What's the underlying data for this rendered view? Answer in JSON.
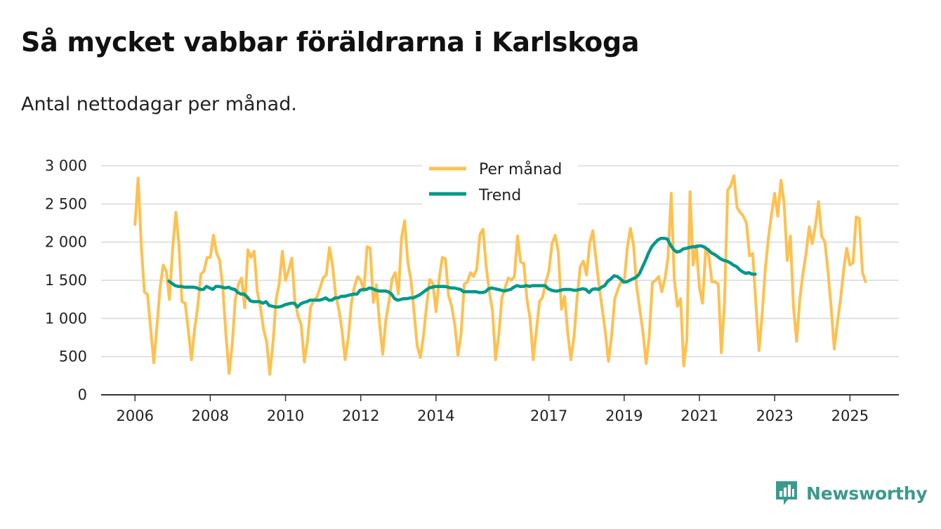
{
  "header": {
    "title": "Så mycket vabbar föräldrarna i Karlskoga",
    "subtitle": "Antal nettodagar per månad."
  },
  "brand": {
    "name": "Newsworthy",
    "color": "#3b9a8c"
  },
  "colors": {
    "per_month": "#ffc04f",
    "trend": "#00998a",
    "grid": "#d9d9d9",
    "axis": "#333333"
  },
  "chart_data": {
    "type": "line",
    "title": "Så mycket vabbar föräldrarna i Karlskoga",
    "subtitle": "Antal nettodagar per månad.",
    "xlabel": "",
    "ylabel": "",
    "ylim": [
      0,
      3000
    ],
    "xlim": [
      2005.1,
      2026.3
    ],
    "yticks": [
      0,
      500,
      1000,
      1500,
      2000,
      2500,
      3000
    ],
    "ytick_labels": [
      "0",
      "500",
      "1 000",
      "1 500",
      "2 000",
      "2 500",
      "3 000"
    ],
    "xticks": [
      2006,
      2008,
      2010,
      2012,
      2014,
      2017,
      2019,
      2021,
      2023,
      2025
    ],
    "xtick_labels": [
      "2006",
      "2008",
      "2010",
      "2012",
      "2014",
      "2017",
      "2019",
      "2021",
      "2023",
      "2025"
    ],
    "grid": true,
    "legend_position": "top-center",
    "series": [
      {
        "name": "Per månad",
        "color": "#ffc04f",
        "x_start": 2006.0,
        "x_step": 0.08333,
        "values": [
          2230,
          2840,
          1950,
          1350,
          1310,
          860,
          420,
          900,
          1400,
          1700,
          1620,
          1250,
          1900,
          2390,
          1980,
          1220,
          1200,
          850,
          460,
          860,
          1150,
          1580,
          1620,
          1800,
          1800,
          2090,
          1860,
          1760,
          1400,
          790,
          280,
          650,
          1250,
          1450,
          1530,
          1140,
          1900,
          1800,
          1880,
          1350,
          1150,
          860,
          690,
          270,
          680,
          1250,
          1460,
          1880,
          1500,
          1630,
          1790,
          1230,
          1030,
          920,
          430,
          700,
          1150,
          1240,
          1280,
          1400,
          1530,
          1570,
          1930,
          1700,
          1300,
          1120,
          850,
          460,
          740,
          1200,
          1420,
          1550,
          1500,
          1360,
          1940,
          1920,
          1210,
          1440,
          930,
          530,
          980,
          1220,
          1520,
          1600,
          1320,
          2060,
          2280,
          1740,
          1500,
          1090,
          640,
          490,
          770,
          1170,
          1510,
          1460,
          1090,
          1520,
          1800,
          1780,
          1300,
          1160,
          910,
          520,
          800,
          1450,
          1480,
          1600,
          1550,
          1650,
          2100,
          2170,
          1680,
          1350,
          1100,
          460,
          780,
          1270,
          1400,
          1530,
          1500,
          1550,
          2080,
          1740,
          1720,
          1250,
          1000,
          460,
          840,
          1220,
          1280,
          1480,
          1620,
          1980,
          2090,
          1870,
          1120,
          1290,
          820,
          460,
          760,
          1270,
          1680,
          1750,
          1570,
          1990,
          2150,
          1780,
          1430,
          1130,
          820,
          440,
          770,
          1260,
          1380,
          1480,
          1470,
          1930,
          2180,
          1960,
          1410,
          1120,
          820,
          410,
          760,
          1470,
          1500,
          1550,
          1350,
          1520,
          1800,
          2640,
          1510,
          1160,
          1260,
          380,
          730,
          2660,
          1700,
          1960,
          1400,
          1200,
          1900,
          1820,
          1480,
          1480,
          1450,
          550,
          1200,
          2680,
          2740,
          2870,
          2450,
          2390,
          2340,
          2250,
          1820,
          1850,
          1200,
          580,
          1050,
          1640,
          2050,
          2370,
          2640,
          2340,
          2810,
          2520,
          1760,
          2080,
          1150,
          700,
          1250,
          1580,
          1850,
          2200,
          1980,
          2220,
          2530,
          2080,
          2000,
          1620,
          1150,
          600,
          940,
          1250,
          1640,
          1920,
          1700,
          1730,
          2330,
          2310,
          1600,
          1480
        ]
      },
      {
        "name": "Trend",
        "color": "#00998a",
        "x_start": 2006.9,
        "x_step": 0.08333,
        "values": [
          1490,
          1460,
          1430,
          1420,
          1420,
          1410,
          1410,
          1410,
          1410,
          1400,
          1380,
          1380,
          1420,
          1400,
          1380,
          1420,
          1420,
          1410,
          1400,
          1410,
          1390,
          1380,
          1340,
          1320,
          1320,
          1280,
          1230,
          1220,
          1220,
          1220,
          1200,
          1220,
          1170,
          1160,
          1150,
          1150,
          1160,
          1180,
          1190,
          1200,
          1200,
          1150,
          1190,
          1210,
          1220,
          1240,
          1240,
          1240,
          1240,
          1250,
          1270,
          1240,
          1240,
          1270,
          1270,
          1290,
          1290,
          1300,
          1310,
          1320,
          1320,
          1370,
          1380,
          1380,
          1400,
          1390,
          1370,
          1360,
          1360,
          1360,
          1350,
          1320,
          1260,
          1240,
          1250,
          1260,
          1260,
          1270,
          1270,
          1290,
          1310,
          1340,
          1370,
          1400,
          1410,
          1420,
          1420,
          1420,
          1420,
          1410,
          1400,
          1400,
          1390,
          1380,
          1350,
          1350,
          1350,
          1350,
          1350,
          1340,
          1340,
          1350,
          1390,
          1400,
          1390,
          1380,
          1370,
          1360,
          1370,
          1380,
          1410,
          1430,
          1420,
          1420,
          1430,
          1420,
          1430,
          1430,
          1430,
          1430,
          1430,
          1390,
          1370,
          1360,
          1360,
          1370,
          1380,
          1380,
          1380,
          1370,
          1370,
          1380,
          1390,
          1380,
          1340,
          1380,
          1390,
          1380,
          1410,
          1430,
          1490,
          1520,
          1560,
          1550,
          1520,
          1480,
          1480,
          1500,
          1520,
          1540,
          1580,
          1670,
          1760,
          1860,
          1940,
          1990,
          2030,
          2050,
          2050,
          2040,
          1960,
          1900,
          1870,
          1880,
          1910,
          1920,
          1930,
          1940,
          1940,
          1950,
          1950,
          1930,
          1900,
          1860,
          1840,
          1810,
          1780,
          1760,
          1750,
          1730,
          1700,
          1680,
          1640,
          1610,
          1590,
          1600,
          1580,
          1580
        ]
      }
    ]
  }
}
